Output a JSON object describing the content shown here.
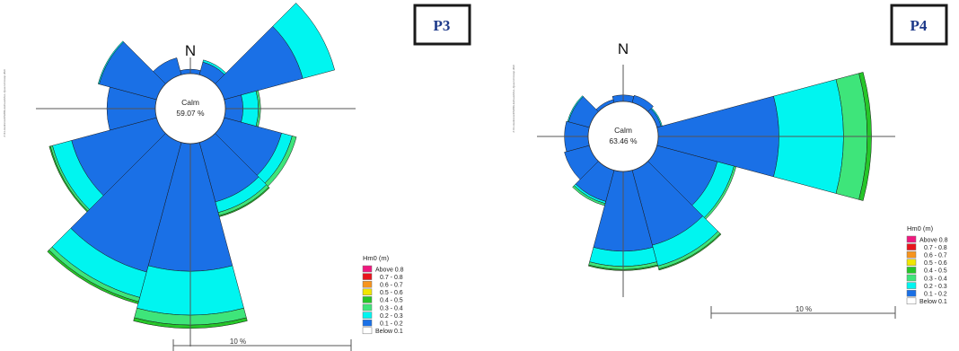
{
  "colors": {
    "above_0_8": "#f0187f",
    "c0_7_0_8": "#e8141c",
    "c0_6_0_7": "#f7941d",
    "c0_5_0_6": "#f2e600",
    "c0_4_0_5": "#26c629",
    "c0_3_0_4": "#3ee57a",
    "c0_2_0_3": "#00f5f0",
    "c0_1_0_2": "#1a70e6",
    "below_0_1": "#ffffff",
    "axis": "#555555",
    "label_border": "#1a1a1a",
    "label_text": "#1e3a8a"
  },
  "chart_data": [
    {
      "type": "rose",
      "panel_label": "P3",
      "north_label": "N",
      "calm": {
        "label": "Calm",
        "value": "59.07 %"
      },
      "side_text": "Z:\\11-Hedrenord\\SWIG-Exhaust\\ALL-Quai-Unirossp.dfs0",
      "scale_label": "10 %",
      "legend": {
        "title": "Hm0 (m)",
        "entries": [
          "Above 0.8",
          "0.7 - 0.8",
          "0.6 - 0.7",
          "0.5 - 0.6",
          "0.4 - 0.5",
          "0.3 - 0.4",
          "0.2 - 0.3",
          "0.1 - 0.2",
          "Below 0.1"
        ]
      },
      "sector_width_deg": 30,
      "series_names": [
        "0.1 - 0.2",
        "0.2 - 0.3",
        "0.3 - 0.4",
        "0.4 - 0.5"
      ],
      "directions_deg": [
        0,
        30,
        60,
        90,
        120,
        150,
        180,
        210,
        240,
        270,
        300,
        330
      ],
      "cumulative_percent": [
        [
          0.2,
          0.2,
          0.2,
          0.2
        ],
        [
          0.6,
          0.7,
          0.7,
          0.7
        ],
        [
          3.7,
          5.2,
          5.2,
          5.2
        ],
        [
          0.8,
          1.5,
          1.6,
          1.6
        ],
        [
          2.7,
          3.2,
          3.4,
          3.4
        ],
        [
          2.8,
          3.3,
          3.45,
          3.5
        ],
        [
          5.8,
          7.8,
          8.25,
          8.4
        ],
        [
          6.1,
          7.3,
          7.5,
          7.6
        ],
        [
          4.0,
          4.9,
          5.0,
          5.05
        ],
        [
          2.2,
          2.2,
          2.2,
          2.2
        ],
        [
          2.7,
          2.75,
          2.75,
          2.75
        ],
        [
          0.8,
          0.8,
          0.8,
          0.8
        ]
      ]
    },
    {
      "type": "rose",
      "panel_label": "P4",
      "north_label": "N",
      "calm": {
        "label": "Calm",
        "value": "63.46 %"
      },
      "side_text": "Z:\\11-Hedrenord\\SWIG-Exhaust\\ALL-Quai-Unirossp.dfs0",
      "scale_label": "10 %",
      "legend": {
        "title": "Hm0 (m)",
        "entries": [
          "Above 0.8",
          "0.7 - 0.8",
          "0.6 - 0.7",
          "0.5 - 0.6",
          "0.4 - 0.5",
          "0.3 - 0.4",
          "0.2 - 0.3",
          "0.1 - 0.2",
          "Below 0.1"
        ]
      },
      "sector_width_deg": 30,
      "series_names": [
        "0.1 - 0.2",
        "0.2 - 0.3",
        "0.3 - 0.4",
        "0.4 - 0.5"
      ],
      "directions_deg": [
        0,
        30,
        60,
        90,
        120,
        150,
        180,
        210,
        240,
        270,
        300,
        330
      ],
      "cumulative_percent": [
        [
          0.3,
          0.3,
          0.3,
          0.3
        ],
        [
          0.35,
          0.35,
          0.35,
          0.35
        ],
        [
          0.2,
          0.25,
          0.25,
          0.25
        ],
        [
          5.6,
          8.6,
          9.7,
          9.9
        ],
        [
          2.9,
          3.7,
          3.8,
          3.8
        ],
        [
          3.6,
          4.6,
          4.75,
          4.8
        ],
        [
          3.7,
          4.4,
          4.55,
          4.6
        ],
        [
          1.5,
          1.6,
          1.7,
          1.7
        ],
        [
          1.2,
          1.2,
          1.2,
          1.2
        ],
        [
          1.1,
          1.1,
          1.1,
          1.1
        ],
        [
          1.0,
          1.05,
          1.05,
          1.05
        ],
        [
          0.15,
          0.15,
          0.15,
          0.15
        ]
      ]
    }
  ]
}
